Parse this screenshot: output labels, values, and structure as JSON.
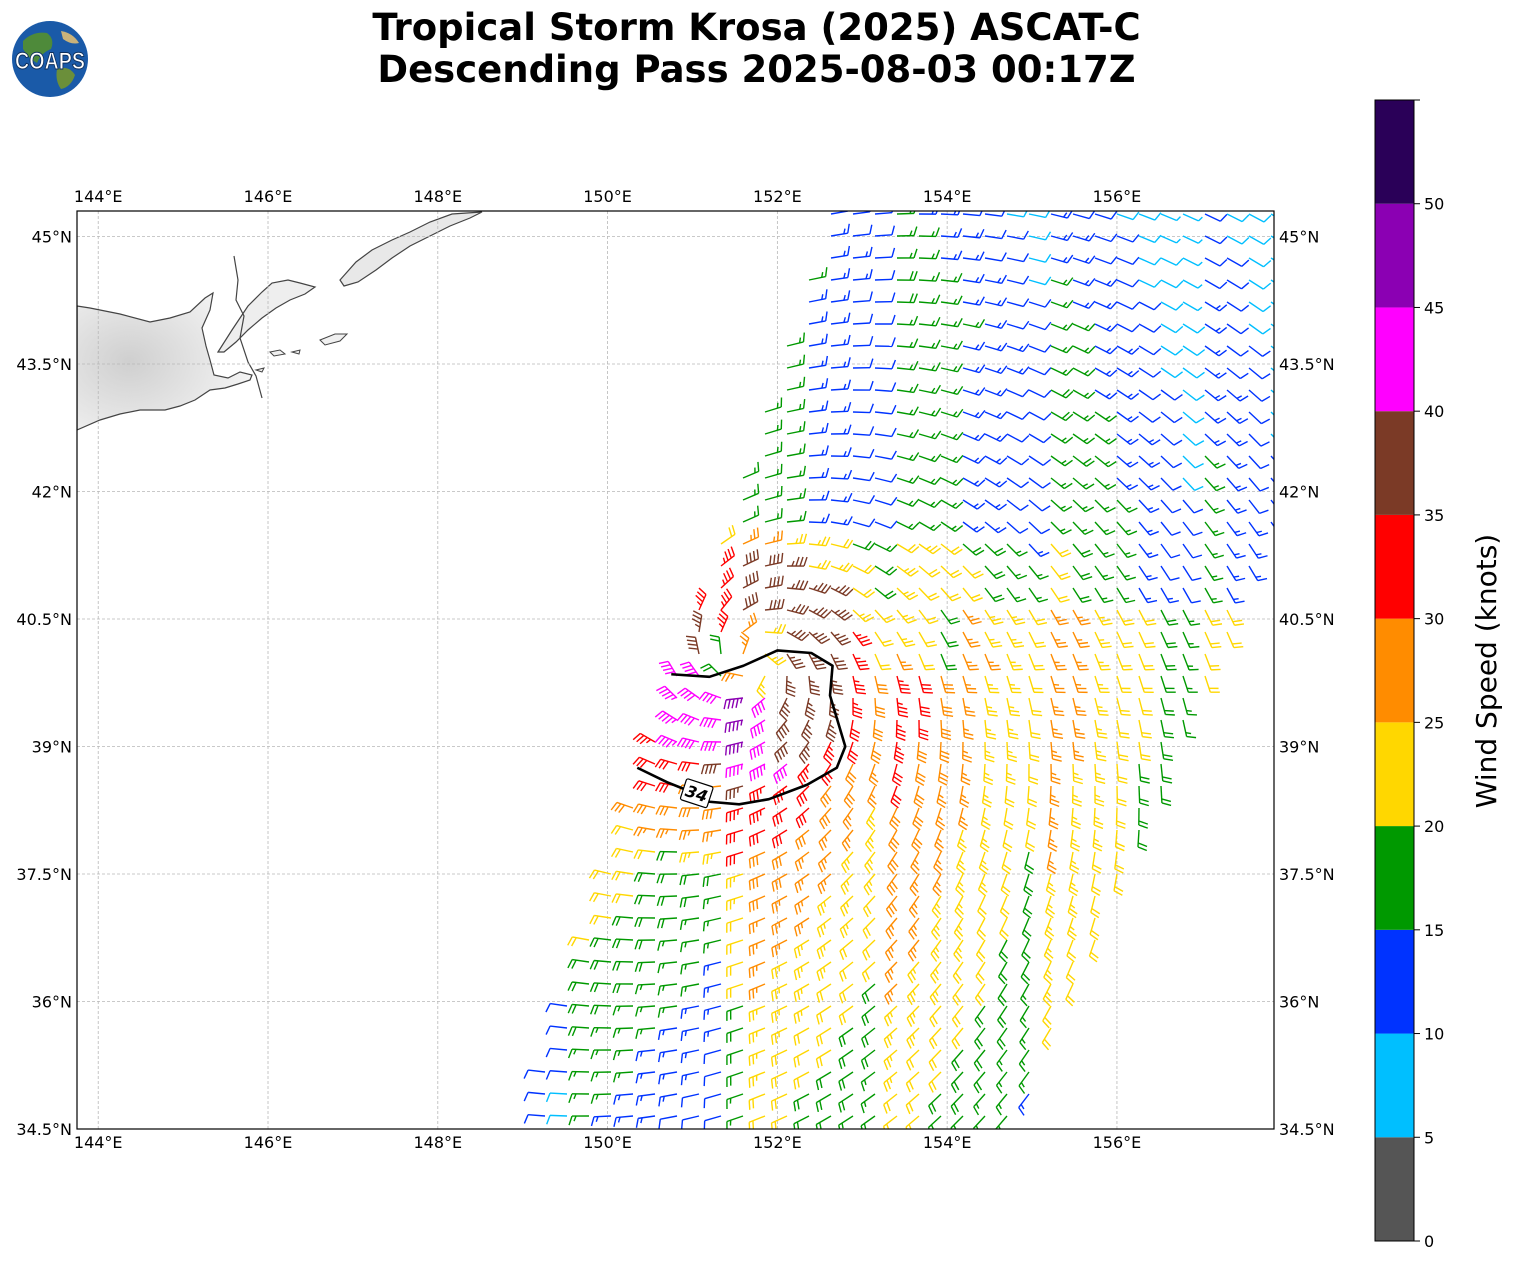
{
  "title": {
    "line1": "Tropical Storm Krosa (2025) ASCAT-C",
    "line2": "Descending Pass 2025-08-03 00:17Z"
  },
  "logo": {
    "text": "COAPS",
    "icon": "globe-logo-icon"
  },
  "map": {
    "lon_range": [
      143.75,
      157.85
    ],
    "lat_range": [
      34.5,
      45.3
    ],
    "lon_ticks": [
      144,
      146,
      148,
      150,
      152,
      154,
      156
    ],
    "lon_tick_labels": [
      "144°E",
      "146°E",
      "148°E",
      "150°E",
      "152°E",
      "154°E",
      "156°E"
    ],
    "lat_ticks": [
      34.5,
      36,
      37.5,
      39,
      40.5,
      42,
      43.5,
      45
    ],
    "lat_tick_labels": [
      "34.5°N",
      "36°N",
      "37.5°N",
      "39°N",
      "40.5°N",
      "42°N",
      "43.5°N",
      "45°N"
    ],
    "grid": true,
    "storm_center": {
      "lon": 151.7,
      "lat": 40.0
    },
    "contour_label": "34",
    "contour_path": [
      [
        150.75,
        39.85
      ],
      [
        151.2,
        39.82
      ],
      [
        151.6,
        39.95
      ],
      [
        152.0,
        40.13
      ],
      [
        152.4,
        40.1
      ],
      [
        152.65,
        39.95
      ],
      [
        152.62,
        39.6
      ],
      [
        152.8,
        39.0
      ],
      [
        152.7,
        38.75
      ],
      [
        152.35,
        38.55
      ],
      [
        151.9,
        38.38
      ],
      [
        151.55,
        38.32
      ],
      [
        151.2,
        38.35
      ],
      [
        150.9,
        38.5
      ],
      [
        150.7,
        38.58
      ],
      [
        150.35,
        38.75
      ]
    ]
  },
  "colorbar": {
    "label": "Wind Speed (knots)",
    "min": 0,
    "max": 55,
    "ticks": [
      0,
      5,
      10,
      15,
      20,
      25,
      30,
      35,
      40,
      45,
      50
    ],
    "tick_labels": [
      "0",
      "5",
      "10",
      "15",
      "20",
      "25",
      "30",
      "35",
      "40",
      "45",
      "50"
    ],
    "colors": [
      "#555555",
      "#00bfff",
      "#0033ff",
      "#009900",
      "#ffd700",
      "#ff8c00",
      "#ff0000",
      "#7b3a26",
      "#ff00ff",
      "#8b00b3",
      "#2a0058"
    ]
  }
}
